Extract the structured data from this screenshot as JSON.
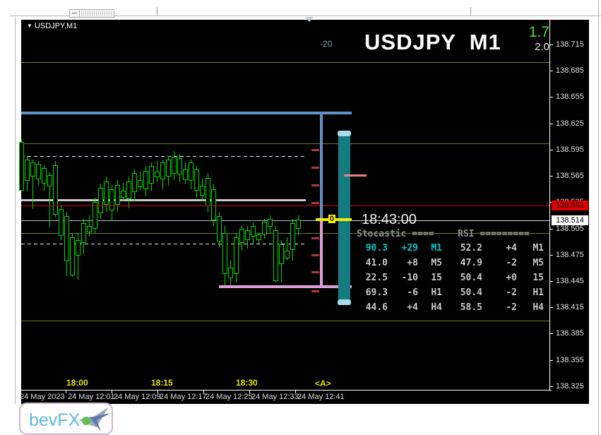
{
  "window": {
    "symbol_label": "USDJPY,M1",
    "dropdown_icon": "triangle-down"
  },
  "header": {
    "title": "USDJPY  M1",
    "indicator_value": "-20",
    "value_top": "1.7",
    "value_bottom": "2.0"
  },
  "clock": "18:43:00",
  "zero_marker_label": "0",
  "panel": {
    "header_left": "Stocastic ====",
    "header_right": "RSI =========",
    "rows": [
      {
        "stoch": "90.3",
        "stoch_delta": "+29",
        "tf": "M1",
        "rsi": "52.2",
        "rsi_delta": "+4",
        "rsi_tf": "M1",
        "highlight": true
      },
      {
        "stoch": "41.0",
        "stoch_delta": "+8",
        "tf": "M5",
        "rsi": "47.9",
        "rsi_delta": "-2",
        "rsi_tf": "M5",
        "highlight": false
      },
      {
        "stoch": "22.5",
        "stoch_delta": "-10",
        "tf": "15",
        "rsi": "50.4",
        "rsi_delta": "+0",
        "rsi_tf": "15",
        "highlight": false
      },
      {
        "stoch": "69.3",
        "stoch_delta": "-6",
        "tf": "H1",
        "rsi": "50.4",
        "rsi_delta": "-2",
        "rsi_tf": "H1",
        "highlight": false
      },
      {
        "stoch": "44.6",
        "stoch_delta": "+4",
        "tf": "H4",
        "rsi": "58.5",
        "rsi_delta": "-2",
        "rsi_tf": "H4",
        "highlight": false
      }
    ]
  },
  "price_axis": {
    "ticks": [
      "138.715",
      "138.685",
      "138.655",
      "138.625",
      "138.595",
      "138.565",
      "138.535",
      "138.505",
      "138.475",
      "138.445",
      "138.415",
      "138.385",
      "138.355",
      "138.325"
    ],
    "ask_box": "138.531",
    "bid_box": "138.514"
  },
  "time_axis": {
    "labels": [
      "18:00",
      "18:15",
      "18:30"
    ],
    "marker": "<A>",
    "dates": [
      "24 May 2023",
      "24 May 12:01",
      "24 May 12:09",
      "24 May 12:17",
      "24 May 12:25",
      "24 May 12:33",
      "24 May 12:41"
    ]
  },
  "logo": {
    "text": "bevFX"
  },
  "colors": {
    "candle": "#00DC00",
    "background": "#000000",
    "range_line_blue": "#6090C8",
    "range_line_pink": "#DDA0DD",
    "gauge_teal": "#147C80",
    "gauge_cap": "#A6D9EA",
    "ask_red": "#E00000",
    "bid_gray": "#AEBBCC",
    "level_olive": "#6E7E23",
    "gray_band": "#C8C8C8",
    "dash_white": "#EDEDED",
    "tick_dash_red": "#B03838",
    "yellow_marker": "#F0F000",
    "salmon_tick": "#F08080",
    "time_label_yellow": "#E6E600",
    "highlight_teal": "#00C8C8",
    "panel_text": "#C8C8C8",
    "title_white": "#FFFFFF",
    "value_green": "#44DD44"
  },
  "chart_data": {
    "type": "candlestick",
    "symbol": "USDJPY",
    "timeframe": "M1",
    "title": "USDJPY M1",
    "y_axis_ticks": [
      138.715,
      138.685,
      138.655,
      138.625,
      138.595,
      138.565,
      138.535,
      138.505,
      138.475,
      138.445,
      138.415,
      138.385,
      138.355,
      138.325
    ],
    "y_range": [
      138.325,
      138.715
    ],
    "x_axis_labels": [
      "18:00",
      "18:15",
      "18:30"
    ],
    "ask": 138.531,
    "bid": 138.514,
    "levels": {
      "range_high": 138.637,
      "range_low": 138.438,
      "round_levels": [
        138.695,
        138.6,
        138.5,
        138.4
      ],
      "dashed_levels": [
        138.588,
        138.488
      ],
      "gray_band": 138.538
    },
    "candle_format": [
      "time",
      "open",
      "high",
      "low",
      "close"
    ],
    "candles": [
      [
        "17:50",
        138.604,
        138.606,
        138.547,
        138.55
      ],
      [
        "17:51",
        138.584,
        138.588,
        138.547,
        138.561
      ],
      [
        "17:52",
        138.58,
        138.584,
        138.527,
        138.566
      ],
      [
        "17:53",
        138.563,
        138.582,
        138.555,
        138.579
      ],
      [
        "17:54",
        138.574,
        138.577,
        138.548,
        138.558
      ],
      [
        "17:55",
        138.566,
        138.569,
        138.506,
        138.555
      ],
      [
        "17:56",
        138.577,
        138.582,
        138.518,
        138.522
      ],
      [
        "17:57",
        138.527,
        138.532,
        138.492,
        138.498
      ],
      [
        "17:58",
        138.519,
        138.524,
        138.451,
        138.469
      ],
      [
        "17:59",
        138.495,
        138.5,
        138.45,
        138.453
      ],
      [
        "18:00",
        138.476,
        138.5,
        138.447,
        138.492
      ],
      [
        "18:01",
        138.49,
        138.516,
        138.476,
        138.511
      ],
      [
        "18:02",
        138.508,
        138.52,
        138.496,
        138.502
      ],
      [
        "18:03",
        138.506,
        138.54,
        138.5,
        138.535
      ],
      [
        "18:04",
        138.524,
        138.556,
        138.516,
        138.551
      ],
      [
        "18:05",
        138.534,
        138.564,
        138.524,
        138.559
      ],
      [
        "18:06",
        138.55,
        138.555,
        138.514,
        138.527
      ],
      [
        "18:07",
        138.534,
        138.56,
        138.524,
        138.555
      ],
      [
        "18:08",
        138.548,
        138.558,
        138.536,
        138.542
      ],
      [
        "18:09",
        138.54,
        138.564,
        138.528,
        138.559
      ],
      [
        "18:10",
        138.548,
        138.572,
        138.536,
        138.568
      ],
      [
        "18:11",
        138.56,
        138.57,
        138.548,
        138.554
      ],
      [
        "18:12",
        138.551,
        138.576,
        138.542,
        138.571
      ],
      [
        "18:13",
        138.558,
        138.58,
        138.548,
        138.576
      ],
      [
        "18:14",
        138.57,
        138.582,
        138.558,
        138.565
      ],
      [
        "18:15",
        138.563,
        138.584,
        138.55,
        138.58
      ],
      [
        "18:16",
        138.566,
        138.588,
        138.555,
        138.584
      ],
      [
        "18:17",
        138.569,
        138.593,
        138.56,
        138.587
      ],
      [
        "18:18",
        138.585,
        138.59,
        138.558,
        138.568
      ],
      [
        "18:19",
        138.572,
        138.58,
        138.556,
        138.562
      ],
      [
        "18:20",
        138.58,
        138.584,
        138.55,
        138.561
      ],
      [
        "18:21",
        138.572,
        138.576,
        138.54,
        138.55
      ],
      [
        "18:22",
        138.554,
        138.562,
        138.536,
        138.544
      ],
      [
        "18:23",
        138.563,
        138.568,
        138.524,
        138.532
      ],
      [
        "18:24",
        138.55,
        138.556,
        138.508,
        138.516
      ],
      [
        "18:25",
        138.519,
        138.524,
        138.484,
        138.492
      ],
      [
        "18:26",
        138.5,
        138.508,
        138.437,
        138.455
      ],
      [
        "18:27",
        138.46,
        138.468,
        138.438,
        138.45
      ],
      [
        "18:28",
        138.455,
        138.5,
        138.443,
        138.495
      ],
      [
        "18:29",
        138.49,
        138.509,
        138.48,
        138.505
      ],
      [
        "18:30",
        138.503,
        138.508,
        138.482,
        138.493
      ],
      [
        "18:31",
        138.497,
        138.512,
        138.488,
        138.508
      ],
      [
        "18:32",
        138.498,
        138.501,
        138.488,
        138.493
      ],
      [
        "18:33",
        138.5,
        138.516,
        138.493,
        138.513
      ],
      [
        "18:34",
        138.509,
        138.52,
        138.5,
        138.516
      ],
      [
        "18:35",
        138.503,
        138.508,
        138.443,
        138.447
      ],
      [
        "18:36",
        138.466,
        138.492,
        138.443,
        138.487
      ],
      [
        "18:37",
        138.48,
        138.495,
        138.468,
        138.472
      ],
      [
        "18:38",
        138.482,
        138.516,
        138.468,
        138.511
      ],
      [
        "18:39",
        138.506,
        138.52,
        138.497,
        138.515
      ]
    ],
    "indicator_table": {
      "stochastic": {
        "M1": [
          90.3,
          29
        ],
        "M5": [
          41.0,
          8
        ],
        "15": [
          22.5,
          -10
        ],
        "H1": [
          69.3,
          -6
        ],
        "H4": [
          44.6,
          4
        ]
      },
      "rsi": {
        "M1": [
          52.2,
          4
        ],
        "M5": [
          47.9,
          -2
        ],
        "15": [
          50.4,
          0
        ],
        "H1": [
          50.4,
          -2
        ],
        "H4": [
          58.5,
          -2
        ]
      }
    }
  }
}
